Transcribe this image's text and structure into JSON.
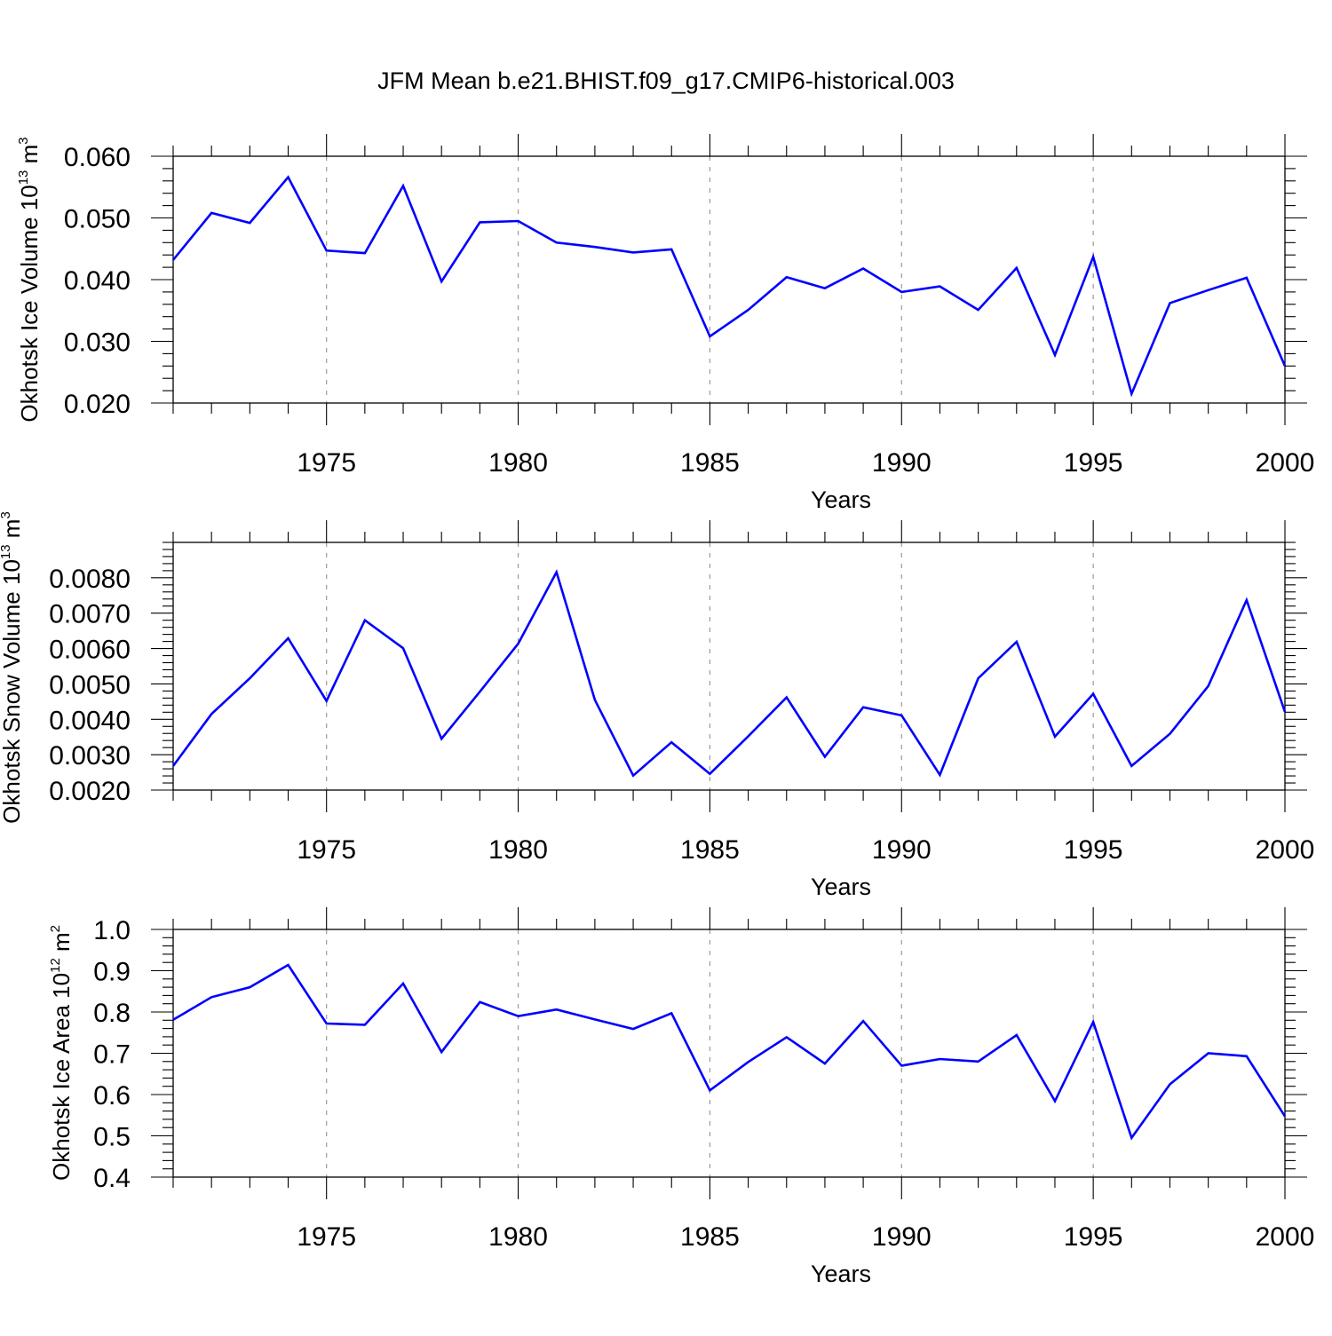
{
  "title": "JFM Mean b.e21.BHIST.f09_g17.CMIP6-historical.003",
  "chart_data": [
    {
      "type": "line",
      "ylabel": "Okhotsk Ice Volume 10",
      "ylabel_exp": "13",
      "ylabel_unit": " m",
      "ylabel_unit_exp": "3",
      "xlabel": "Years",
      "xlim": [
        1971,
        2000
      ],
      "ylim": [
        0.02,
        0.06
      ],
      "xticks": [
        1975,
        1980,
        1985,
        1990,
        1995,
        2000
      ],
      "xtick_labels": [
        "1975",
        "1980",
        "1985",
        "1990",
        "1995",
        "2000"
      ],
      "yticks": [
        0.02,
        0.03,
        0.04,
        0.05,
        0.06
      ],
      "ytick_labels": [
        "0.020",
        "0.030",
        "0.040",
        "0.050",
        "0.060"
      ],
      "series_color": "#0000ff",
      "series": [
        {
          "name": "Okhotsk Ice Volume",
          "x": [
            1971,
            1972,
            1973,
            1974,
            1975,
            1976,
            1977,
            1978,
            1979,
            1980,
            1981,
            1982,
            1983,
            1984,
            1985,
            1986,
            1987,
            1988,
            1989,
            1990,
            1991,
            1992,
            1993,
            1994,
            1995,
            1996,
            1997,
            1998,
            1999,
            2000
          ],
          "values": [
            0.0432,
            0.0508,
            0.0492,
            0.0566,
            0.0447,
            0.0443,
            0.0552,
            0.0397,
            0.0493,
            0.0495,
            0.046,
            0.0453,
            0.0444,
            0.0449,
            0.0308,
            0.0351,
            0.0404,
            0.0386,
            0.0418,
            0.038,
            0.0389,
            0.0351,
            0.0419,
            0.0278,
            0.0437,
            0.0215,
            0.0362,
            0.0383,
            0.0403,
            0.026
          ]
        }
      ]
    },
    {
      "type": "line",
      "ylabel": "Okhotsk Snow Volume 10",
      "ylabel_exp": "13",
      "ylabel_unit": " m",
      "ylabel_unit_exp": "3",
      "xlabel": "Years",
      "xlim": [
        1971,
        2000
      ],
      "ylim": [
        0.002,
        0.009
      ],
      "xticks": [
        1975,
        1980,
        1985,
        1990,
        1995,
        2000
      ],
      "xtick_labels": [
        "1975",
        "1980",
        "1985",
        "1990",
        "1995",
        "2000"
      ],
      "yticks": [
        0.002,
        0.003,
        0.004,
        0.005,
        0.006,
        0.007,
        0.008
      ],
      "ytick_labels": [
        "0.0020",
        "0.0030",
        "0.0040",
        "0.0050",
        "0.0060",
        "0.0070",
        "0.0080"
      ],
      "series_color": "#0000ff",
      "series": [
        {
          "name": "Okhotsk Snow Volume",
          "x": [
            1971,
            1972,
            1973,
            1974,
            1975,
            1976,
            1977,
            1978,
            1979,
            1980,
            1981,
            1982,
            1983,
            1984,
            1985,
            1986,
            1987,
            1988,
            1989,
            1990,
            1991,
            1992,
            1993,
            1994,
            1995,
            1996,
            1997,
            1998,
            1999,
            2000
          ],
          "values": [
            0.00268,
            0.00415,
            0.00516,
            0.00629,
            0.00452,
            0.0068,
            0.00601,
            0.00345,
            0.00478,
            0.00614,
            0.00816,
            0.00455,
            0.00241,
            0.00335,
            0.00246,
            0.00352,
            0.00462,
            0.00294,
            0.00434,
            0.00411,
            0.00243,
            0.00516,
            0.00619,
            0.00351,
            0.00472,
            0.00268,
            0.00359,
            0.00494,
            0.00737,
            0.00421
          ]
        }
      ]
    },
    {
      "type": "line",
      "ylabel": "Okhotsk Ice Area 10",
      "ylabel_exp": "12",
      "ylabel_unit": " m",
      "ylabel_unit_exp": "2",
      "xlabel": "Years",
      "xlim": [
        1971,
        2000
      ],
      "ylim": [
        0.4,
        1.0
      ],
      "xticks": [
        1975,
        1980,
        1985,
        1990,
        1995,
        2000
      ],
      "xtick_labels": [
        "1975",
        "1980",
        "1985",
        "1990",
        "1995",
        "2000"
      ],
      "yticks": [
        0.4,
        0.5,
        0.6,
        0.7,
        0.8,
        0.9,
        1.0
      ],
      "ytick_labels": [
        "0.4",
        "0.5",
        "0.6",
        "0.7",
        "0.8",
        "0.9",
        "1.0"
      ],
      "series_color": "#0000ff",
      "series": [
        {
          "name": "Okhotsk Ice Area",
          "x": [
            1971,
            1972,
            1973,
            1974,
            1975,
            1976,
            1977,
            1978,
            1979,
            1980,
            1981,
            1982,
            1983,
            1984,
            1985,
            1986,
            1987,
            1988,
            1989,
            1990,
            1991,
            1992,
            1993,
            1994,
            1995,
            1996,
            1997,
            1998,
            1999,
            2000
          ],
          "values": [
            0.781,
            0.836,
            0.86,
            0.914,
            0.772,
            0.769,
            0.869,
            0.703,
            0.824,
            0.79,
            0.806,
            0.782,
            0.759,
            0.797,
            0.61,
            0.679,
            0.739,
            0.675,
            0.778,
            0.67,
            0.686,
            0.68,
            0.744,
            0.584,
            0.776,
            0.495,
            0.625,
            0.7,
            0.693,
            0.547
          ]
        }
      ]
    }
  ]
}
